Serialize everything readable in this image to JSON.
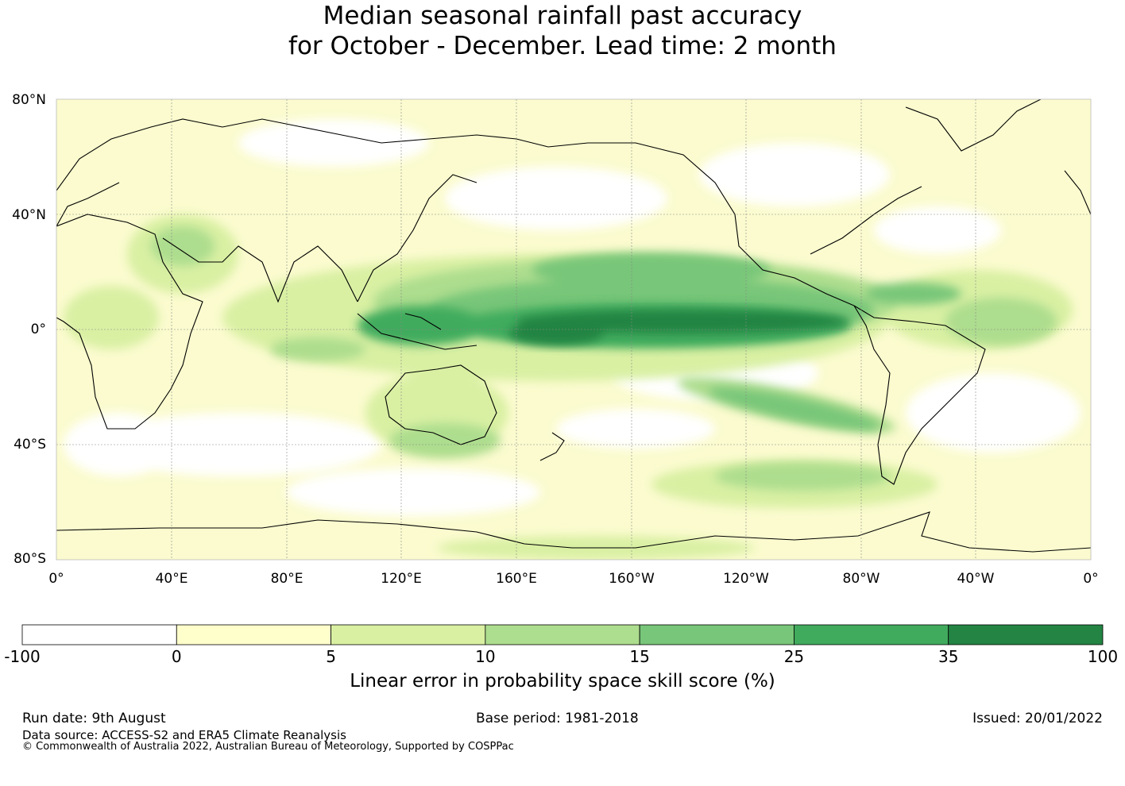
{
  "title": {
    "line1": "Median seasonal rainfall past accuracy",
    "line2": "for October - December. Lead time: 2 month"
  },
  "map": {
    "projection": "equirectangular, centered on 180°",
    "lat_labels": [
      "80°N",
      "40°N",
      "0°",
      "40°S",
      "80°S"
    ],
    "lon_labels": [
      "0°",
      "40°E",
      "80°E",
      "120°E",
      "160°E",
      "160°W",
      "120°W",
      "80°W",
      "40°W",
      "0°"
    ],
    "grid": true,
    "regions": [
      {
        "name": "equatorial-pacific-core",
        "level": 35
      },
      {
        "name": "equatorial-pacific-band",
        "level": 25
      },
      {
        "name": "maritime-continent",
        "level": 25
      },
      {
        "name": "south-pacific-convergence",
        "level": 15
      },
      {
        "name": "tropical-atlantic",
        "level": 15
      },
      {
        "name": "australia-south",
        "level": 15
      },
      {
        "name": "southern-ocean",
        "level": 10
      }
    ]
  },
  "colorbar": {
    "title": "Linear error in probability space skill score (%)",
    "ticks": [
      "-100",
      "0",
      "5",
      "10",
      "15",
      "25",
      "35",
      "100"
    ],
    "colors": [
      "#ffffff",
      "#ffffcc",
      "#d9f0a3",
      "#addd8e",
      "#78c679",
      "#41ab5d",
      "#238443"
    ]
  },
  "footer": {
    "run_date": "Run date: 9th August",
    "base_period": "Base period: 1981-2018",
    "issued": "Issued: 20/01/2022",
    "data_source": "Data source: ACCESS-S2 and ERA5 Climate Reanalysis",
    "copyright": "© Commonwealth of Australia 2022, Australian Bureau of Meteorology, Supported by COSPPac"
  }
}
